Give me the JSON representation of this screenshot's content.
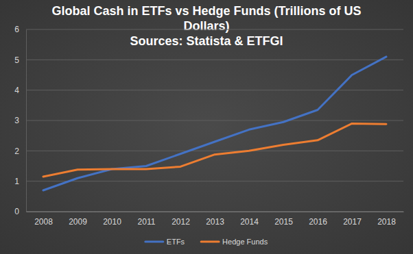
{
  "chart_data": {
    "type": "line",
    "title": "Global Cash in ETFs vs Hedge Funds (Trillions of US Dollars)",
    "subtitle": "Sources: Statista & ETFGI",
    "categories": [
      "2008",
      "2009",
      "2010",
      "2011",
      "2012",
      "2013",
      "2014",
      "2015",
      "2016",
      "2017",
      "2018"
    ],
    "series": [
      {
        "name": "ETFs",
        "color": "#4472c4",
        "values": [
          0.7,
          1.1,
          1.4,
          1.5,
          1.9,
          2.3,
          2.7,
          2.95,
          3.35,
          4.5,
          5.1
        ]
      },
      {
        "name": "Hedge Funds",
        "color": "#ed7d31",
        "values": [
          1.15,
          1.38,
          1.4,
          1.4,
          1.48,
          1.88,
          2.0,
          2.2,
          2.35,
          2.9,
          2.88
        ]
      }
    ],
    "ylim": [
      0,
      6
    ],
    "yticks": [
      0,
      1,
      2,
      3,
      4,
      5,
      6
    ],
    "grid": true,
    "legend": "bottom"
  }
}
